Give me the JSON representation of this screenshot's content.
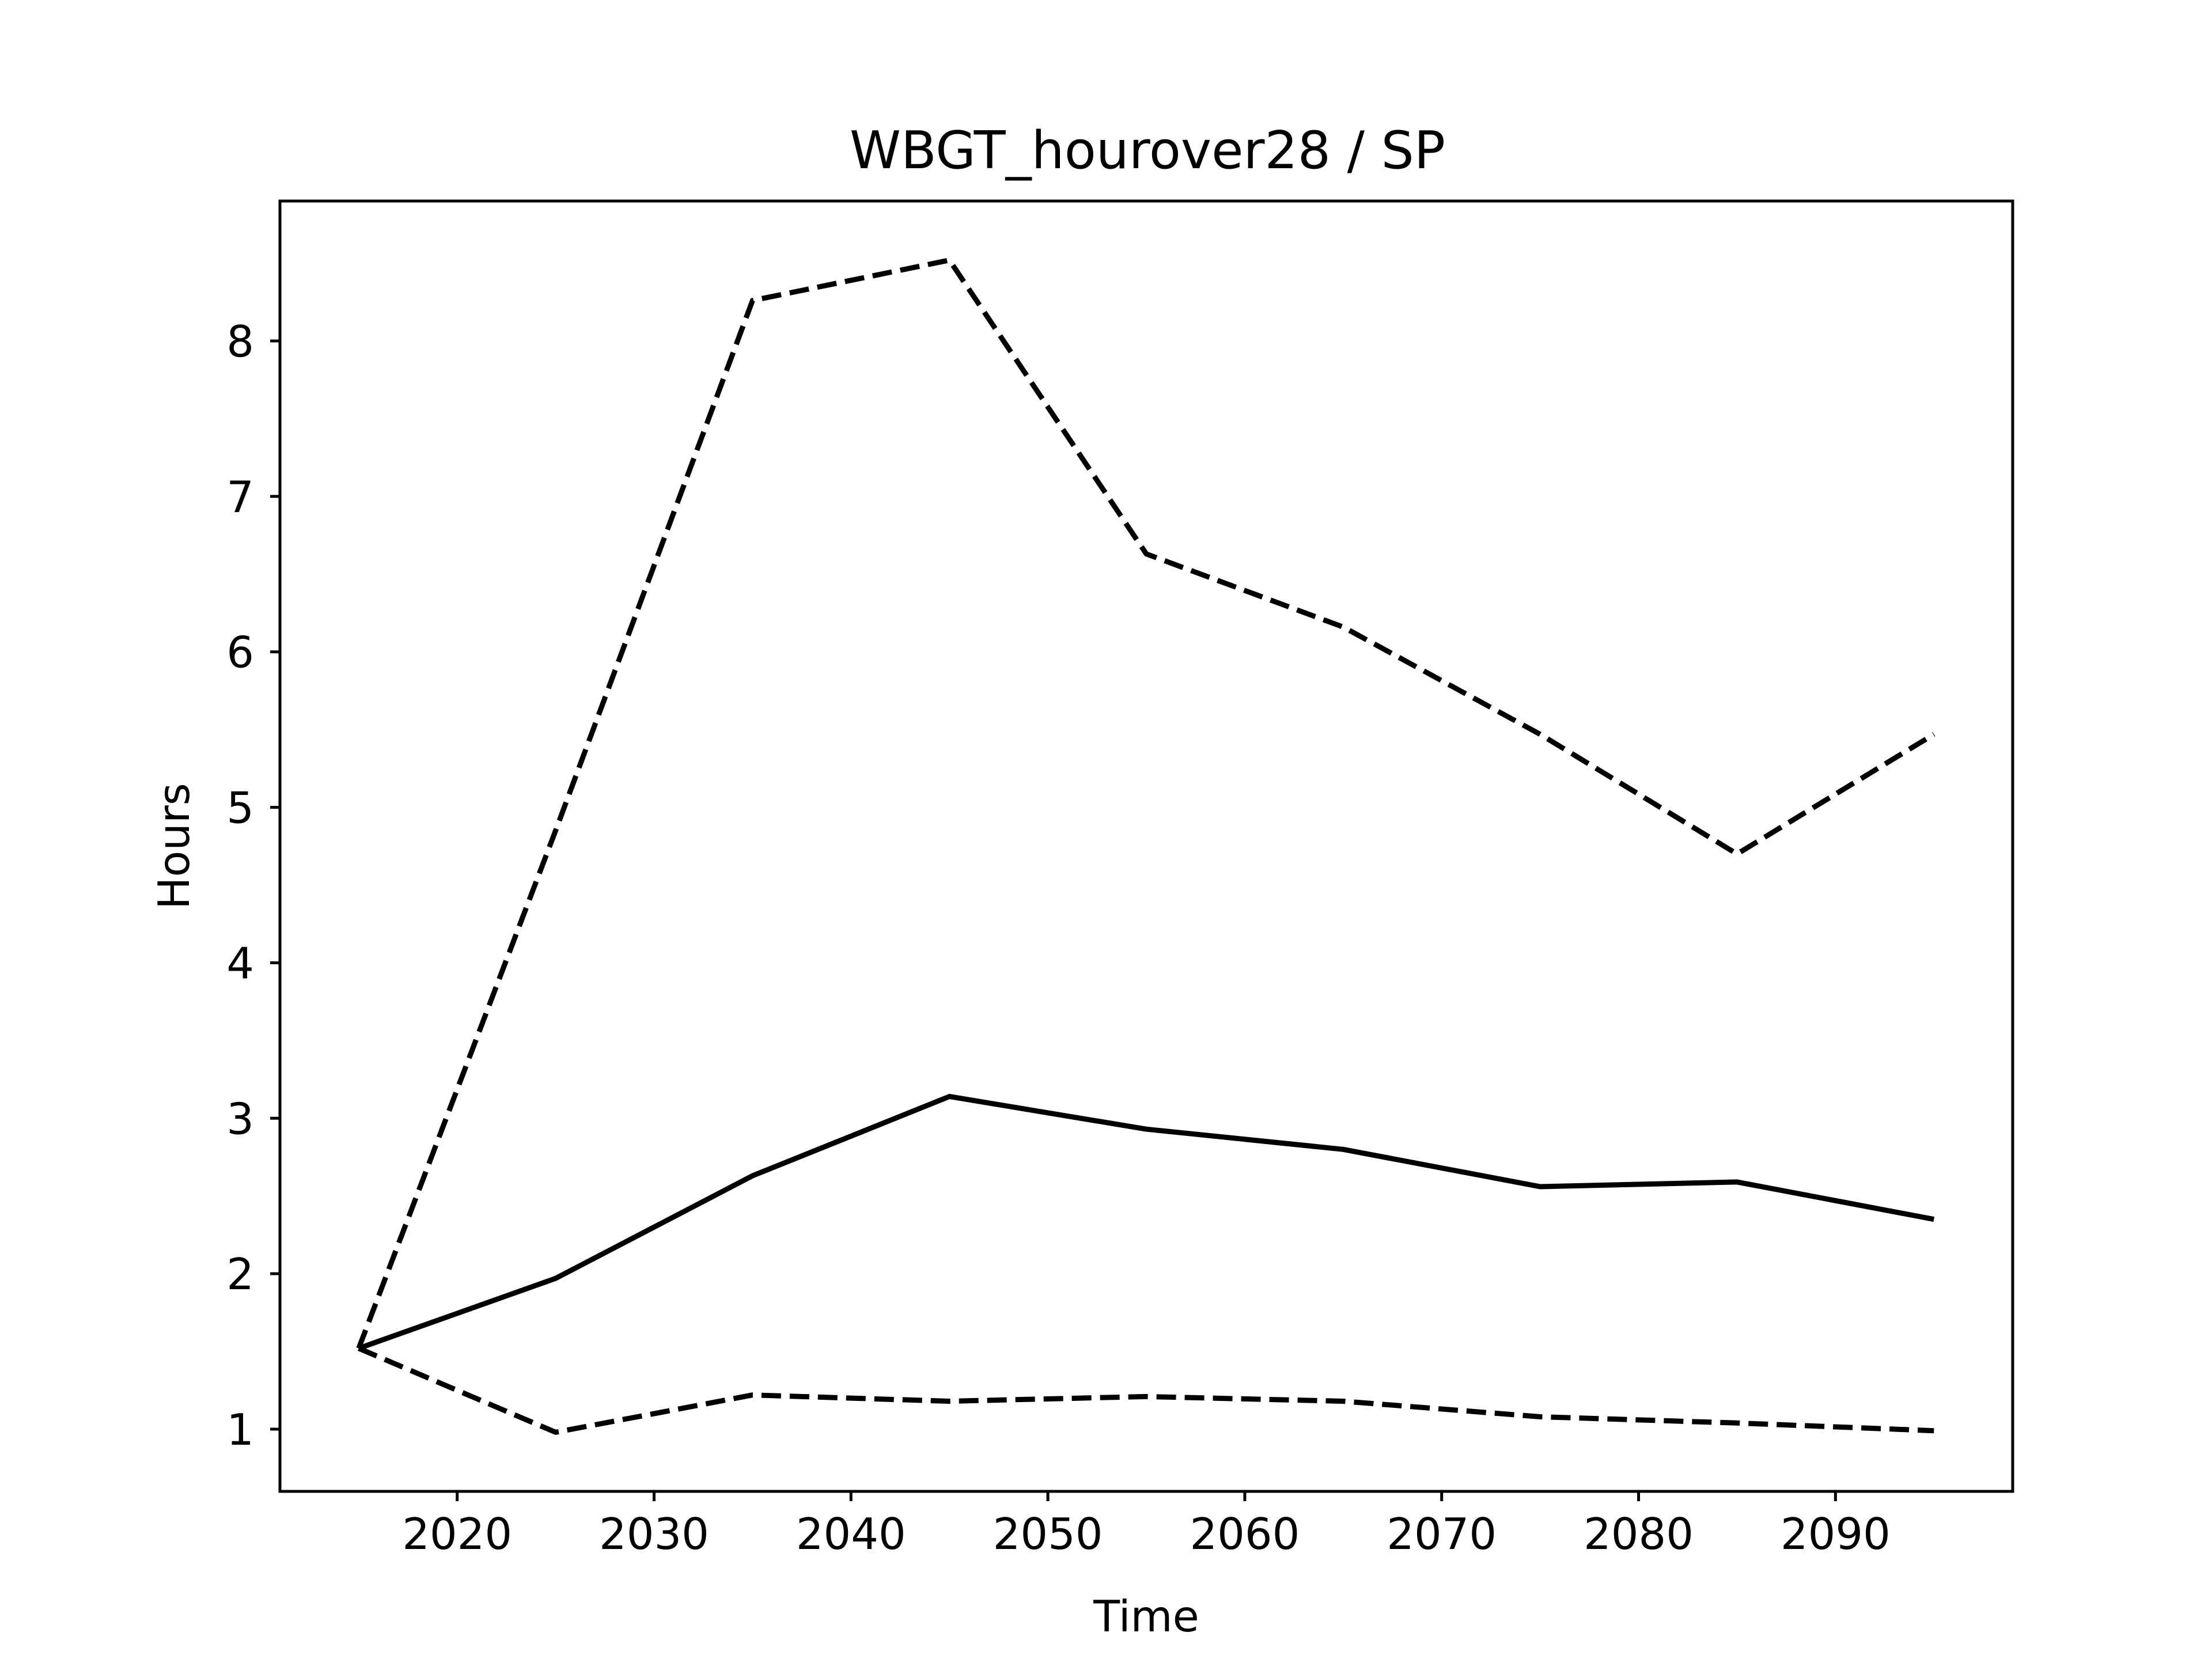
{
  "chart_data": {
    "type": "line",
    "title": "WBGT_hourover28 / SP",
    "xlabel": "Time",
    "ylabel": "Hours",
    "xlim": [
      2011,
      2099
    ],
    "ylim": [
      0.6,
      8.9
    ],
    "xticks": [
      2020,
      2030,
      2040,
      2050,
      2060,
      2070,
      2080,
      2090
    ],
    "yticks": [
      1,
      2,
      3,
      4,
      5,
      6,
      7,
      8
    ],
    "grid": false,
    "legend": "none",
    "x": [
      2015,
      2025,
      2035,
      2045,
      2055,
      2065,
      2075,
      2085,
      2095
    ],
    "series": [
      {
        "style": "solid",
        "color": "#000000",
        "values": [
          1.52,
          1.97,
          2.63,
          3.14,
          2.93,
          2.8,
          2.56,
          2.59,
          2.35
        ]
      },
      {
        "style": "dashed",
        "color": "#000000",
        "values": [
          1.52,
          4.85,
          8.26,
          8.52,
          6.63,
          6.16,
          5.47,
          4.7,
          5.47
        ]
      },
      {
        "style": "dashed",
        "color": "#000000",
        "values": [
          1.52,
          0.98,
          1.22,
          1.18,
          1.21,
          1.18,
          1.08,
          1.04,
          0.99
        ]
      }
    ]
  }
}
